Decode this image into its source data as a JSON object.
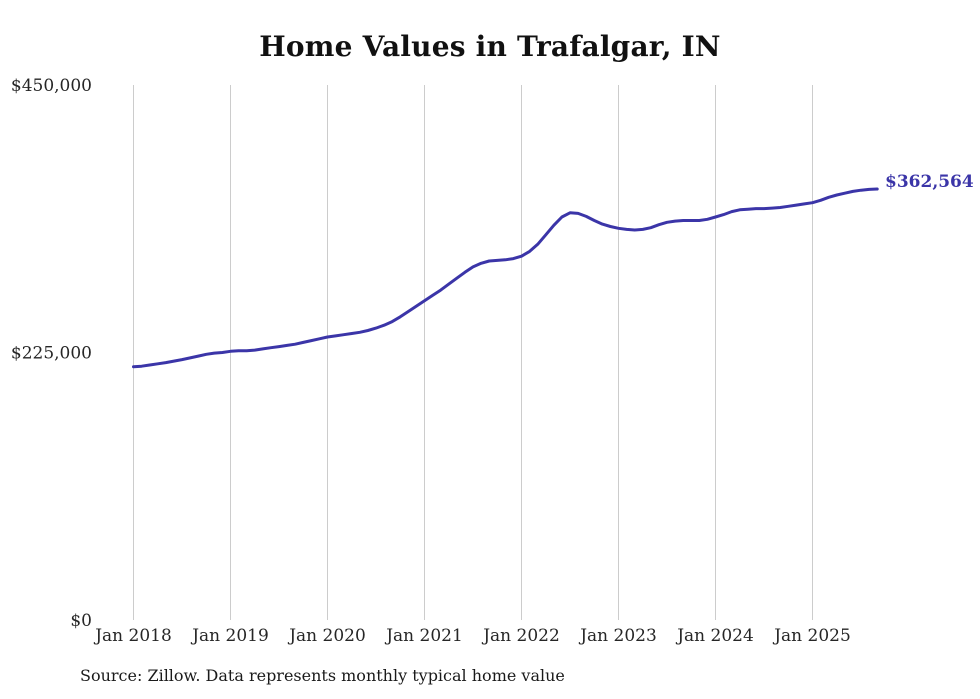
{
  "chart_data": {
    "type": "line",
    "title": "Home Values in Trafalgar, IN",
    "end_label": "$362,564",
    "source": "Source: Zillow. Data represents monthly typical home value",
    "line_color": "#3b35a8",
    "gridline_color": "#cccccc",
    "tick_color": "#262626",
    "ylim": [
      0,
      450000
    ],
    "y_ticks": [
      {
        "label": "$0",
        "value": 0
      },
      {
        "label": "$225,000",
        "value": 225000
      },
      {
        "label": "$450,000",
        "value": 450000
      }
    ],
    "x_ticks": [
      "Jan 2018",
      "Jan 2019",
      "Jan 2020",
      "Jan 2021",
      "Jan 2022",
      "Jan 2023",
      "Jan 2024",
      "Jan 2025"
    ],
    "months": [
      "2018-01",
      "2018-02",
      "2018-03",
      "2018-04",
      "2018-05",
      "2018-06",
      "2018-07",
      "2018-08",
      "2018-09",
      "2018-10",
      "2018-11",
      "2018-12",
      "2019-01",
      "2019-02",
      "2019-03",
      "2019-04",
      "2019-05",
      "2019-06",
      "2019-07",
      "2019-08",
      "2019-09",
      "2019-10",
      "2019-11",
      "2019-12",
      "2020-01",
      "2020-02",
      "2020-03",
      "2020-04",
      "2020-05",
      "2020-06",
      "2020-07",
      "2020-08",
      "2020-09",
      "2020-10",
      "2020-11",
      "2020-12",
      "2021-01",
      "2021-02",
      "2021-03",
      "2021-04",
      "2021-05",
      "2021-06",
      "2021-07",
      "2021-08",
      "2021-09",
      "2021-10",
      "2021-11",
      "2021-12",
      "2022-01",
      "2022-02",
      "2022-03",
      "2022-04",
      "2022-05",
      "2022-06",
      "2022-07",
      "2022-08",
      "2022-09",
      "2022-10",
      "2022-11",
      "2022-12",
      "2023-01",
      "2023-02",
      "2023-03",
      "2023-04",
      "2023-05",
      "2023-06",
      "2023-07",
      "2023-08",
      "2023-09",
      "2023-10",
      "2023-11",
      "2023-12",
      "2024-01",
      "2024-02",
      "2024-03",
      "2024-04",
      "2024-05",
      "2024-06",
      "2024-07",
      "2024-08",
      "2024-09",
      "2024-10",
      "2024-11",
      "2024-12",
      "2025-01",
      "2025-02",
      "2025-03",
      "2025-04",
      "2025-05",
      "2025-06",
      "2025-07",
      "2025-08",
      "2025-09"
    ],
    "values": [
      213000,
      213500,
      214500,
      215500,
      216500,
      217800,
      219000,
      220500,
      222000,
      223500,
      224500,
      225000,
      226000,
      226500,
      226500,
      227000,
      228000,
      229000,
      230000,
      231000,
      232000,
      233500,
      235000,
      236500,
      238000,
      239000,
      240000,
      241000,
      242000,
      243500,
      245500,
      248000,
      251000,
      255000,
      259500,
      264000,
      268500,
      273000,
      277500,
      282500,
      287500,
      292500,
      297000,
      300000,
      302000,
      302500,
      303000,
      304000,
      306000,
      310000,
      316000,
      324000,
      332000,
      339000,
      342500,
      342000,
      339500,
      336000,
      333000,
      331000,
      329500,
      328500,
      328000,
      328500,
      330000,
      332500,
      334500,
      335500,
      336000,
      336000,
      336000,
      337000,
      339000,
      341000,
      343500,
      345000,
      345500,
      346000,
      346000,
      346500,
      347000,
      348000,
      349000,
      350000,
      351000,
      353000,
      355500,
      357500,
      359000,
      360500,
      361500,
      362200,
      362564
    ]
  }
}
